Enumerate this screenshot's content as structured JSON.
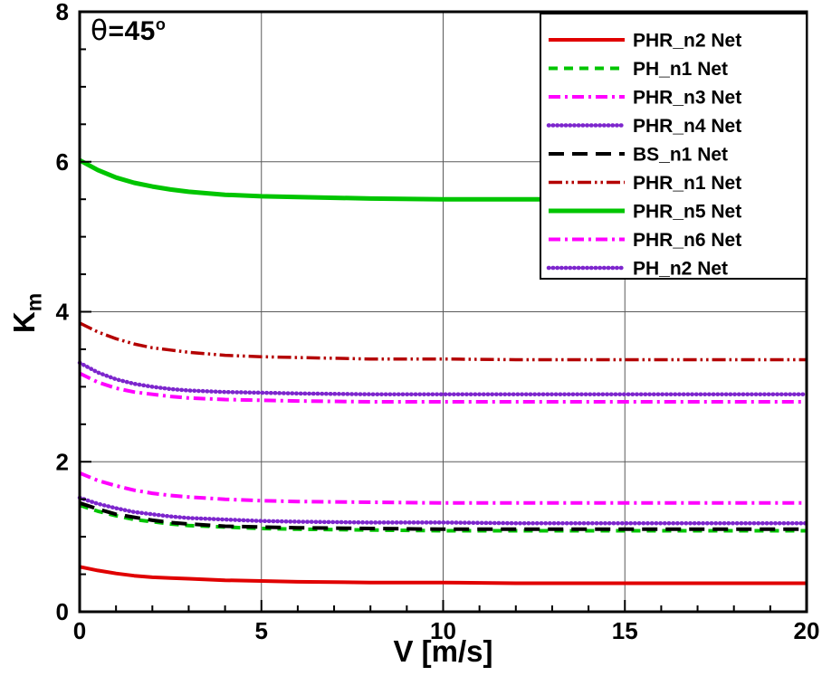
{
  "figure": {
    "annotation": {
      "symbol": "θ",
      "value": "=45",
      "sup": "o"
    },
    "x_axis_label": "V [m/s]",
    "y_axis_label_main": "K",
    "y_axis_label_sub": "m"
  },
  "chart_data": {
    "type": "line",
    "title": "",
    "annotation_text": "θ=45°",
    "xlabel": "V [m/s]",
    "ylabel": "K_m",
    "xlim": [
      0,
      20
    ],
    "ylim": [
      0,
      8
    ],
    "xticks": [
      0,
      5,
      10,
      15,
      20
    ],
    "yticks": [
      0,
      2,
      4,
      6,
      8
    ],
    "x_minor_step": 1,
    "y_minor_step": 0.5,
    "grid": true,
    "grid_color": "#5a5a5a",
    "axis_color": "#000000",
    "legend_position": "top-right",
    "x": [
      0,
      0.5,
      1,
      1.5,
      2,
      2.5,
      3,
      4,
      5,
      6,
      8,
      10,
      12,
      14,
      16,
      18,
      20
    ],
    "series": [
      {
        "name": "PHR_n2 Net",
        "color": "#e00000",
        "style": "solid",
        "width": 4,
        "values": [
          0.6,
          0.55,
          0.51,
          0.48,
          0.46,
          0.45,
          0.44,
          0.42,
          0.41,
          0.4,
          0.39,
          0.39,
          0.38,
          0.38,
          0.38,
          0.38,
          0.38
        ]
      },
      {
        "name": "PH_n1 Net",
        "color": "#00c500",
        "style": "dash",
        "width": 4,
        "values": [
          1.42,
          1.34,
          1.28,
          1.23,
          1.2,
          1.17,
          1.15,
          1.13,
          1.11,
          1.1,
          1.09,
          1.08,
          1.08,
          1.08,
          1.08,
          1.08,
          1.08
        ]
      },
      {
        "name": "PHR_n3 Net",
        "color": "#ff00ff",
        "style": "dashdot",
        "width": 4,
        "values": [
          1.85,
          1.75,
          1.68,
          1.62,
          1.58,
          1.55,
          1.53,
          1.5,
          1.48,
          1.47,
          1.46,
          1.45,
          1.45,
          1.45,
          1.45,
          1.45,
          1.45
        ]
      },
      {
        "name": "PHR_n4 Net",
        "color": "#7d26cd",
        "style": "densedot",
        "width": 4.5,
        "values": [
          1.52,
          1.44,
          1.38,
          1.33,
          1.3,
          1.27,
          1.25,
          1.23,
          1.21,
          1.2,
          1.19,
          1.19,
          1.18,
          1.18,
          1.18,
          1.18,
          1.18
        ]
      },
      {
        "name": "BS_n1 Net",
        "color": "#000000",
        "style": "longdash",
        "width": 4,
        "values": [
          1.45,
          1.37,
          1.3,
          1.26,
          1.22,
          1.19,
          1.17,
          1.14,
          1.13,
          1.12,
          1.11,
          1.1,
          1.1,
          1.1,
          1.1,
          1.1,
          1.1
        ]
      },
      {
        "name": "PHR_n1 Net",
        "color": "#b40000",
        "style": "dashdotdot",
        "width": 3.5,
        "values": [
          3.85,
          3.73,
          3.64,
          3.57,
          3.52,
          3.49,
          3.46,
          3.42,
          3.4,
          3.39,
          3.37,
          3.37,
          3.36,
          3.36,
          3.36,
          3.36,
          3.36
        ]
      },
      {
        "name": "PHR_n5 Net",
        "color": "#00c500",
        "style": "solid",
        "width": 5,
        "values": [
          6.02,
          5.89,
          5.79,
          5.72,
          5.67,
          5.63,
          5.6,
          5.56,
          5.54,
          5.53,
          5.51,
          5.5,
          5.5,
          5.5,
          5.5,
          5.5,
          5.5
        ]
      },
      {
        "name": "PHR_n6 Net",
        "color": "#ff00ff",
        "style": "dashdot",
        "width": 4,
        "values": [
          3.18,
          3.06,
          2.98,
          2.93,
          2.9,
          2.87,
          2.85,
          2.83,
          2.82,
          2.81,
          2.8,
          2.8,
          2.8,
          2.8,
          2.8,
          2.8,
          2.8
        ]
      },
      {
        "name": "PH_n2 Net",
        "color": "#7d26cd",
        "style": "densedot",
        "width": 4.5,
        "values": [
          3.32,
          3.19,
          3.1,
          3.04,
          3.0,
          2.97,
          2.95,
          2.93,
          2.92,
          2.91,
          2.9,
          2.9,
          2.9,
          2.9,
          2.9,
          2.9,
          2.9
        ]
      }
    ]
  }
}
